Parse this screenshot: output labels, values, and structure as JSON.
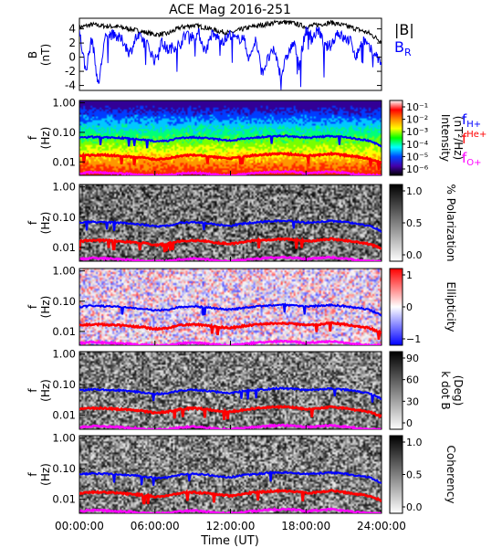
{
  "title": "ACE Mag 2016-251",
  "x_axis": {
    "label": "Time (UT)",
    "ticks": [
      "00:00:00",
      "06:00:00",
      "12:00:00",
      "18:00:00",
      "24:00:00"
    ],
    "range_hours": [
      0,
      24
    ]
  },
  "legend": {
    "b_total": "|B|",
    "b_r_main": "B",
    "b_r_sub": "R",
    "f_h_main": "f",
    "f_h_sub": "H+",
    "f_he_main": "f",
    "f_he_sub": "He+",
    "f_o_main": "f",
    "f_o_sub": "O+"
  },
  "colors": {
    "b_total": "#000000",
    "b_r": "#0000ff",
    "f_h": "#0000ff",
    "f_he": "#ff0000",
    "f_o": "#ff00ff"
  },
  "chart_data": [
    {
      "type": "line",
      "id": "b-panel",
      "ylabel_main": "B",
      "ylabel_unit": "(nT)",
      "yticks": [
        "4",
        "2",
        "0",
        "-2",
        "-4"
      ],
      "ylim": [
        -4.7,
        5.5
      ],
      "series": [
        {
          "name": "|B|",
          "x_hours": [
            0,
            1,
            2,
            3,
            4,
            5,
            6,
            7,
            8,
            9,
            10,
            11,
            12,
            13,
            14,
            15,
            16,
            17,
            18,
            19,
            20,
            21,
            22,
            23,
            24
          ],
          "values": [
            4.2,
            4.6,
            4.4,
            4.3,
            4.0,
            3.6,
            3.2,
            3.3,
            4.2,
            4.5,
            4.2,
            3.7,
            3.4,
            4.0,
            4.4,
            4.7,
            5.0,
            4.8,
            4.3,
            4.6,
            4.9,
            4.5,
            4.0,
            3.4,
            2.2
          ]
        },
        {
          "name": "B_R",
          "x_hours": [
            0,
            0.5,
            1,
            1.5,
            2,
            2.5,
            3,
            3.5,
            4,
            4.5,
            5,
            5.5,
            6,
            6.5,
            7,
            7.5,
            8,
            8.5,
            9,
            9.5,
            10,
            10.5,
            11,
            11.5,
            12,
            12.5,
            13,
            13.5,
            14,
            14.5,
            15,
            15.5,
            16,
            16.5,
            17,
            17.5,
            18,
            18.5,
            19,
            19.5,
            20,
            20.5,
            21,
            21.5,
            22,
            22.5,
            23,
            23.5,
            24
          ],
          "values": [
            3.6,
            -2.0,
            2.8,
            -4.2,
            2.5,
            3.2,
            2.9,
            2.2,
            0.5,
            2.8,
            2.6,
            1.5,
            -0.6,
            2.2,
            1.0,
            1.5,
            1.8,
            3.4,
            2.9,
            3.3,
            0.8,
            3.2,
            2.8,
            2.3,
            3.3,
            2.4,
            2.9,
            -0.3,
            2.5,
            -2.2,
            -0.2,
            1.0,
            -2.7,
            0.2,
            2.0,
            -0.7,
            3.9,
            2.7,
            3.9,
            1.4,
            1.7,
            3.6,
            2.6,
            2.4,
            0.0,
            2.8,
            1.2,
            0.5,
            -1.0
          ]
        }
      ]
    },
    {
      "type": "heatmap",
      "id": "intensity-panel",
      "ylabel_main": "f",
      "ylabel_unit": "(Hz)",
      "yticks": [
        "1.00",
        "0.10",
        "0.01"
      ],
      "ylim_hz": [
        0.0035,
        1.2
      ],
      "colorbar": {
        "label": "Intensity",
        "unit": "(nT²/Hz)",
        "ticks": [
          "10⁻¹",
          "10⁻²",
          "10⁻³",
          "10⁻⁴",
          "10⁻⁵",
          "10⁻⁶"
        ],
        "scale": "rainbow"
      }
    },
    {
      "type": "heatmap",
      "id": "polarization-panel",
      "ylabel_main": "f",
      "ylabel_unit": "(Hz)",
      "yticks": [
        "1.00",
        "0.10",
        "0.01"
      ],
      "ylim_hz": [
        0.0035,
        1.2
      ],
      "colorbar": {
        "label": "% Polarization",
        "unit": "",
        "ticks": [
          "1.0",
          "0.5",
          "0.0"
        ],
        "scale": "gray"
      }
    },
    {
      "type": "heatmap",
      "id": "ellipticity-panel",
      "ylabel_main": "f",
      "ylabel_unit": "(Hz)",
      "yticks": [
        "1.00",
        "0.10",
        "0.01"
      ],
      "ylim_hz": [
        0.0035,
        1.2
      ],
      "colorbar": {
        "label": "Ellipticity",
        "unit": "",
        "ticks": [
          "1",
          "0",
          "−1"
        ],
        "scale": "bwr"
      }
    },
    {
      "type": "heatmap",
      "id": "kdotb-panel",
      "ylabel_main": "f",
      "ylabel_unit": "(Hz)",
      "yticks": [
        "1.00",
        "0.10",
        "0.01"
      ],
      "ylim_hz": [
        0.0035,
        1.2
      ],
      "colorbar": {
        "label": "k dot B",
        "unit": "(Deg)",
        "ticks": [
          "90",
          "60",
          "30",
          "0"
        ],
        "scale": "gray"
      }
    },
    {
      "type": "heatmap",
      "id": "coherency-panel",
      "ylabel_main": "f",
      "ylabel_unit": "(Hz)",
      "yticks": [
        "1.00",
        "0.10",
        "0.01"
      ],
      "ylim_hz": [
        0.0035,
        1.2
      ],
      "colorbar": {
        "label": "Coherency",
        "unit": "",
        "ticks": [
          "1.0",
          "0.5",
          "0.0"
        ],
        "scale": "gray"
      }
    }
  ],
  "gyrofrequency_hz": {
    "x_hours": [
      0,
      1,
      2,
      3,
      4,
      5,
      6,
      7,
      8,
      9,
      10,
      11,
      12,
      13,
      14,
      15,
      16,
      17,
      18,
      19,
      20,
      21,
      22,
      23,
      24
    ],
    "f_h": [
      0.065,
      0.07,
      0.068,
      0.066,
      0.062,
      0.056,
      0.05,
      0.052,
      0.064,
      0.068,
      0.064,
      0.057,
      0.052,
      0.061,
      0.067,
      0.072,
      0.076,
      0.073,
      0.066,
      0.07,
      0.075,
      0.069,
      0.061,
      0.052,
      0.034
    ],
    "f_he": [
      0.016,
      0.017,
      0.017,
      0.016,
      0.015,
      0.014,
      0.012,
      0.013,
      0.016,
      0.017,
      0.016,
      0.014,
      0.013,
      0.015,
      0.017,
      0.018,
      0.019,
      0.018,
      0.016,
      0.017,
      0.019,
      0.017,
      0.015,
      0.013,
      0.009
    ],
    "f_o": [
      0.0041,
      0.0044,
      0.0043,
      0.0041,
      0.0039,
      0.0036,
      0.0035,
      0.0035,
      0.004,
      0.0043,
      0.004,
      0.0036,
      0.0035,
      0.0038,
      0.0042,
      0.0045,
      0.0047,
      0.0046,
      0.0041,
      0.0044,
      0.0047,
      0.0043,
      0.0038,
      0.0035,
      0.0035
    ]
  }
}
